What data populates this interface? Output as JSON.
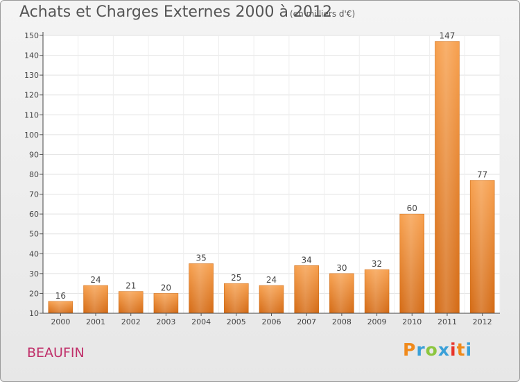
{
  "header": {
    "title": "Achats et Charges Externes 2000 à 2012",
    "unit_note": "(en milliers d'€)"
  },
  "footer": {
    "commune": "BEAUFIN",
    "logo_text": "Proxiti",
    "logo_colors": [
      "#f08a1c",
      "#3aa0d8",
      "#8cc63f",
      "#3aa0d8",
      "#e8342a",
      "#f08a1c",
      "#3aa0d8"
    ]
  },
  "chart_data": {
    "type": "bar",
    "categories": [
      "2000",
      "2001",
      "2002",
      "2003",
      "2004",
      "2005",
      "2006",
      "2007",
      "2008",
      "2009",
      "2010",
      "2011",
      "2012"
    ],
    "values": [
      16,
      24,
      21,
      20,
      35,
      25,
      24,
      34,
      30,
      32,
      60,
      147,
      77
    ],
    "ylim": [
      10,
      150
    ],
    "yticks": [
      10,
      20,
      30,
      40,
      50,
      60,
      70,
      80,
      90,
      100,
      110,
      120,
      130,
      140,
      150
    ],
    "grid": true,
    "bar_color": "#f0963c",
    "title": "Achats et Charges Externes 2000 à 2012",
    "subtitle": "(en milliers d'€)",
    "xlabel": "",
    "ylabel": ""
  }
}
